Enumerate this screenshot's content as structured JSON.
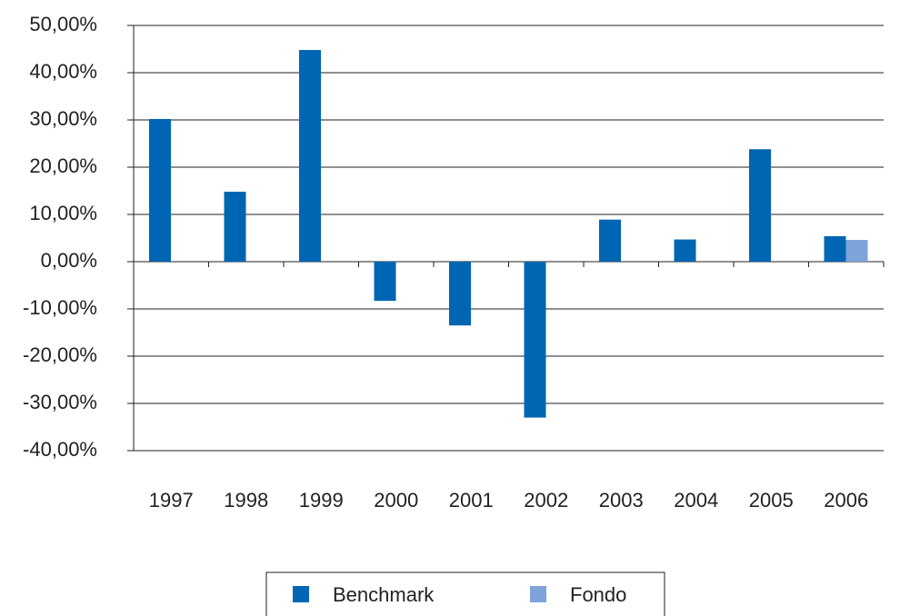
{
  "chart_data": {
    "type": "bar",
    "categories": [
      "1997",
      "1998",
      "1999",
      "2000",
      "2001",
      "2002",
      "2003",
      "2004",
      "2005",
      "2006"
    ],
    "series": [
      {
        "name": "Benchmark",
        "color": "#0066b3",
        "values": [
          30.2,
          14.8,
          44.8,
          -8.3,
          -13.5,
          -33,
          8.9,
          4.7,
          23.8,
          5.4
        ]
      },
      {
        "name": "Fondo",
        "color": "#7ea3d8",
        "values": [
          null,
          null,
          null,
          null,
          null,
          null,
          null,
          null,
          null,
          4.6
        ]
      }
    ],
    "ylim": [
      -40,
      50
    ],
    "yticks": [
      {
        "value": -40,
        "label": "-40,00%"
      },
      {
        "value": -30,
        "label": "-30,00%"
      },
      {
        "value": -20,
        "label": "-20,00%"
      },
      {
        "value": -10,
        "label": "-10,00%"
      },
      {
        "value": 0,
        "label": "0,00%"
      },
      {
        "value": 10,
        "label": "10,00%"
      },
      {
        "value": 20,
        "label": "20,00%"
      },
      {
        "value": 30,
        "label": "30,00%"
      },
      {
        "value": 40,
        "label": "40,00%"
      },
      {
        "value": 50,
        "label": "50,00%"
      }
    ],
    "grid": true,
    "legend": "bottom"
  }
}
